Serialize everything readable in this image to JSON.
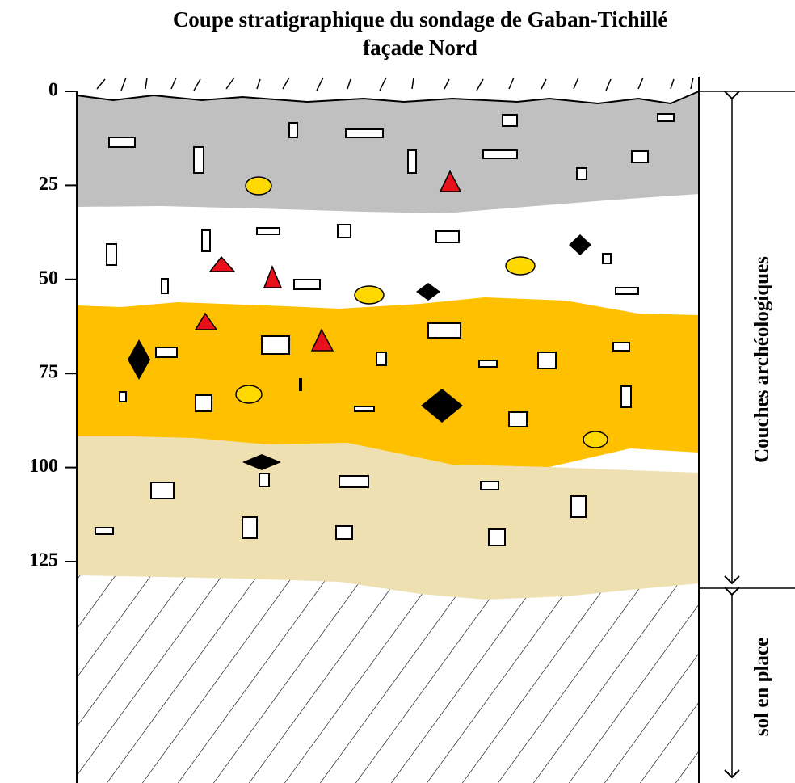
{
  "title": [
    "Coupe stratigraphique du sondage de Gaban-Tichillé",
    "façade Nord"
  ],
  "depth_axis": {
    "ticks": [
      0,
      25,
      50,
      75,
      100,
      125
    ]
  },
  "side_labels": [
    "Couches archéologiques",
    "sol en place"
  ]
}
